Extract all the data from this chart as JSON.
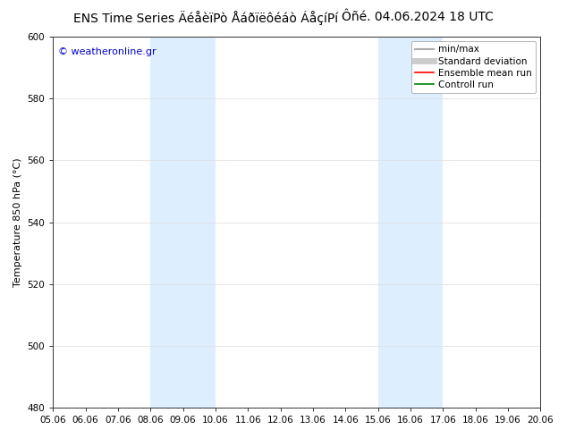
{
  "title_left": "ENS Time Series ÄéåèïPò Åáðïëôéáò ÁåçíPí",
  "title_right": "Ôñé. 04.06.2024 18 UTC",
  "ylabel": "Temperature 850 hPa (°C)",
  "watermark": "© weatheronline.gr",
  "ylim": [
    480,
    600
  ],
  "yticks": [
    480,
    500,
    520,
    540,
    560,
    580,
    600
  ],
  "xticks": [
    "05.06",
    "06.06",
    "07.06",
    "08.06",
    "09.06",
    "10.06",
    "11.06",
    "12.06",
    "13.06",
    "14.06",
    "15.06",
    "16.06",
    "17.06",
    "18.06",
    "19.06",
    "20.06"
  ],
  "background_color": "#ffffff",
  "plot_bg_color": "#ffffff",
  "shaded_bands": [
    {
      "x_start": "08.06",
      "x_end": "10.06",
      "color": "#ddeeff"
    },
    {
      "x_start": "15.06",
      "x_end": "17.06",
      "color": "#ddeeff"
    }
  ],
  "legend_entries": [
    {
      "label": "min/max",
      "color": "#aaaaaa",
      "linewidth": 1.5,
      "linestyle": "-"
    },
    {
      "label": "Standard deviation",
      "color": "#cccccc",
      "linewidth": 5,
      "linestyle": "-"
    },
    {
      "label": "Ensemble mean run",
      "color": "#ff0000",
      "linewidth": 1.2,
      "linestyle": "-"
    },
    {
      "label": "Controll run",
      "color": "#008000",
      "linewidth": 1.2,
      "linestyle": "-"
    }
  ],
  "title_fontsize": 10,
  "ylabel_fontsize": 8,
  "watermark_color": "#0000cc",
  "watermark_fontsize": 8,
  "tick_fontsize": 7.5,
  "legend_fontsize": 7.5
}
